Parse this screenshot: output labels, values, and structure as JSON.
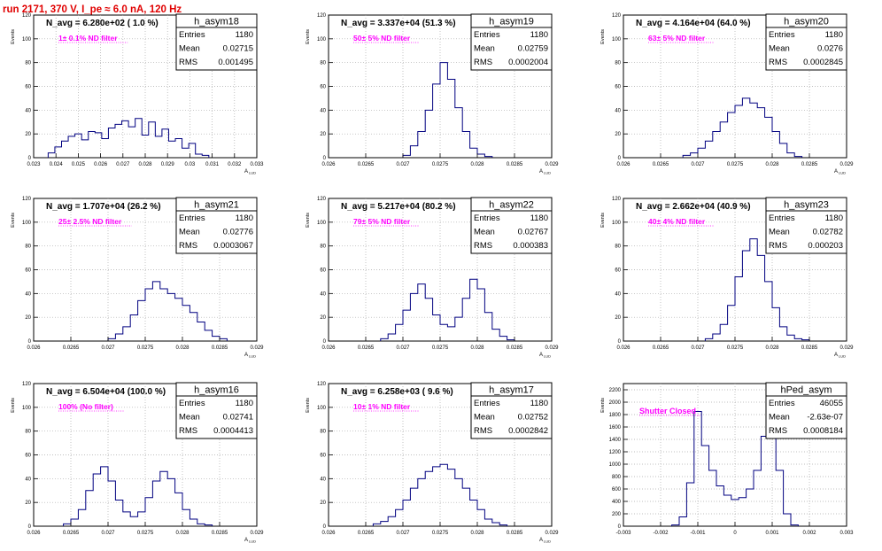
{
  "canvas_title": "run 2171,   370 V, I_pe ≈ 6.0 nA, 120 Hz",
  "colors": {
    "histogram": "#000080",
    "filter_label": "#ff00ff",
    "canvas_title": "#e00000",
    "grid": "#aaaaaa"
  },
  "stats_labels": {
    "entries": "Entries",
    "mean": "Mean",
    "rms": "RMS"
  },
  "chart_data": [
    {
      "type": "bar",
      "name": "h_asym18",
      "avg_text": "N_avg = 6.280e+02 ( 1.0 %)",
      "filter_text": "1± 0.1% ND filter",
      "entries": "1180",
      "mean": "0.02715",
      "rms": "0.001495",
      "ylabel": "Events",
      "xlabel": "A_LUD",
      "grid": true,
      "xlim": [
        0.023,
        0.033
      ],
      "ylim": [
        0,
        120
      ],
      "xticks": [
        0.023,
        0.024,
        0.025,
        0.026,
        0.027,
        0.028,
        0.029,
        0.03,
        0.031,
        0.032,
        0.033
      ],
      "xtick_labels": [
        "0.023",
        "0.024",
        "0.025",
        "0.026",
        "0.027",
        "0.028",
        "0.029",
        "0.03",
        "0.031",
        "0.032",
        "0.033"
      ],
      "yticks": [
        0,
        20,
        40,
        60,
        80,
        100,
        120
      ],
      "ytick_labels": [
        "0",
        "20",
        "40",
        "60",
        "80",
        "100",
        "120"
      ],
      "x": [
        0.0238,
        0.0241,
        0.0244,
        0.0247,
        0.025,
        0.0253,
        0.0256,
        0.0259,
        0.0262,
        0.0265,
        0.0268,
        0.0271,
        0.0274,
        0.0277,
        0.028,
        0.0283,
        0.0286,
        0.0289,
        0.0292,
        0.0295,
        0.0298,
        0.0301,
        0.0304,
        0.0307
      ],
      "values": [
        4,
        9,
        14,
        18,
        20,
        15,
        22,
        21,
        16,
        25,
        28,
        31,
        26,
        33,
        19,
        30,
        18,
        24,
        14,
        16,
        8,
        12,
        3,
        2
      ]
    },
    {
      "type": "bar",
      "name": "h_asym19",
      "avg_text": "N_avg = 3.337e+04 (51.3 %)",
      "filter_text": "50± 5% ND filter",
      "entries": "1180",
      "mean": "0.02759",
      "rms": "0.0002004",
      "ylabel": "Events",
      "xlabel": "A_LUD",
      "grid": true,
      "xlim": [
        0.026,
        0.029
      ],
      "ylim": [
        0,
        120
      ],
      "xticks": [
        0.026,
        0.0265,
        0.027,
        0.0275,
        0.028,
        0.0285,
        0.029
      ],
      "xtick_labels": [
        "0.026",
        "0.0265",
        "0.027",
        "0.0275",
        "0.028",
        "0.0285",
        "0.029"
      ],
      "yticks": [
        0,
        20,
        40,
        60,
        80,
        100,
        120
      ],
      "ytick_labels": [
        "0",
        "20",
        "40",
        "60",
        "80",
        "100",
        "120"
      ],
      "x": [
        0.02705,
        0.02715,
        0.02725,
        0.02735,
        0.02745,
        0.02755,
        0.02765,
        0.02775,
        0.02785,
        0.02795,
        0.02805,
        0.02815
      ],
      "values": [
        2,
        10,
        22,
        40,
        62,
        80,
        66,
        42,
        22,
        8,
        3,
        1
      ]
    },
    {
      "type": "bar",
      "name": "h_asym20",
      "avg_text": "N_avg = 4.164e+04 (64.0 %)",
      "filter_text": "63± 5% ND filter",
      "entries": "1180",
      "mean": "0.0276",
      "rms": "0.0002845",
      "ylabel": "Events",
      "xlabel": "A_LUD",
      "grid": true,
      "xlim": [
        0.026,
        0.029
      ],
      "ylim": [
        0,
        120
      ],
      "xticks": [
        0.026,
        0.0265,
        0.027,
        0.0275,
        0.028,
        0.0285,
        0.029
      ],
      "xtick_labels": [
        "0.026",
        "0.0265",
        "0.027",
        "0.0275",
        "0.028",
        "0.0285",
        "0.029"
      ],
      "yticks": [
        0,
        20,
        40,
        60,
        80,
        100,
        120
      ],
      "ytick_labels": [
        "0",
        "20",
        "40",
        "60",
        "80",
        "100",
        "120"
      ],
      "x": [
        0.02685,
        0.02695,
        0.02705,
        0.02715,
        0.02725,
        0.02735,
        0.02745,
        0.02755,
        0.02765,
        0.02775,
        0.02785,
        0.02795,
        0.02805,
        0.02815,
        0.02825,
        0.02835
      ],
      "values": [
        2,
        4,
        8,
        14,
        22,
        30,
        38,
        44,
        50,
        46,
        42,
        34,
        22,
        12,
        4,
        1
      ]
    },
    {
      "type": "bar",
      "name": "h_asym21",
      "avg_text": "N_avg = 1.707e+04 (26.2 %)",
      "filter_text": "25± 2.5% ND filter",
      "entries": "1180",
      "mean": "0.02776",
      "rms": "0.0003067",
      "ylabel": "Events",
      "xlabel": "A_LUD",
      "grid": true,
      "xlim": [
        0.026,
        0.029
      ],
      "ylim": [
        0,
        120
      ],
      "xticks": [
        0.026,
        0.0265,
        0.027,
        0.0275,
        0.028,
        0.0285,
        0.029
      ],
      "xtick_labels": [
        "0.026",
        "0.0265",
        "0.027",
        "0.0275",
        "0.028",
        "0.0285",
        "0.029"
      ],
      "yticks": [
        0,
        20,
        40,
        60,
        80,
        100,
        120
      ],
      "ytick_labels": [
        "0",
        "20",
        "40",
        "60",
        "80",
        "100",
        "120"
      ],
      "x": [
        0.02705,
        0.02715,
        0.02725,
        0.02735,
        0.02745,
        0.02755,
        0.02765,
        0.02775,
        0.02785,
        0.02795,
        0.02805,
        0.02815,
        0.02825,
        0.02835,
        0.02845,
        0.02855
      ],
      "values": [
        2,
        6,
        12,
        22,
        34,
        44,
        50,
        44,
        40,
        36,
        30,
        24,
        16,
        9,
        4,
        2
      ]
    },
    {
      "type": "bar",
      "name": "h_asym22",
      "avg_text": "N_avg = 5.217e+04 (80.2 %)",
      "filter_text": "79± 5% ND filter",
      "entries": "1180",
      "mean": "0.02767",
      "rms": "0.000383",
      "ylabel": "Events",
      "xlabel": "A_LUD",
      "grid": true,
      "xlim": [
        0.026,
        0.029
      ],
      "ylim": [
        0,
        120
      ],
      "xticks": [
        0.026,
        0.0265,
        0.027,
        0.0275,
        0.028,
        0.0285,
        0.029
      ],
      "xtick_labels": [
        "0.026",
        "0.0265",
        "0.027",
        "0.0275",
        "0.028",
        "0.0285",
        "0.029"
      ],
      "yticks": [
        0,
        20,
        40,
        60,
        80,
        100,
        120
      ],
      "ytick_labels": [
        "0",
        "20",
        "40",
        "60",
        "80",
        "100",
        "120"
      ],
      "x": [
        0.02675,
        0.02685,
        0.02695,
        0.02705,
        0.02715,
        0.02725,
        0.02735,
        0.02745,
        0.02755,
        0.02765,
        0.02775,
        0.02785,
        0.02795,
        0.02805,
        0.02815,
        0.02825,
        0.02835,
        0.02845
      ],
      "values": [
        2,
        6,
        14,
        26,
        40,
        48,
        36,
        22,
        14,
        12,
        20,
        36,
        52,
        44,
        24,
        10,
        4,
        1
      ]
    },
    {
      "type": "bar",
      "name": "h_asym23",
      "avg_text": "N_avg = 2.662e+04 (40.9 %)",
      "filter_text": "40± 4% ND filter",
      "entries": "1180",
      "mean": "0.02782",
      "rms": "0.000203",
      "ylabel": "Events",
      "xlabel": "A_LUD",
      "grid": true,
      "xlim": [
        0.026,
        0.029
      ],
      "ylim": [
        0,
        120
      ],
      "xticks": [
        0.026,
        0.0265,
        0.027,
        0.0275,
        0.028,
        0.0285,
        0.029
      ],
      "xtick_labels": [
        "0.026",
        "0.0265",
        "0.027",
        "0.0275",
        "0.028",
        "0.0285",
        "0.029"
      ],
      "yticks": [
        0,
        20,
        40,
        60,
        80,
        100,
        120
      ],
      "ytick_labels": [
        "0",
        "20",
        "40",
        "60",
        "80",
        "100",
        "120"
      ],
      "x": [
        0.02715,
        0.02725,
        0.02735,
        0.02745,
        0.02755,
        0.02765,
        0.02775,
        0.02785,
        0.02795,
        0.02805,
        0.02815,
        0.02825,
        0.02835,
        0.02845
      ],
      "values": [
        2,
        6,
        14,
        30,
        54,
        76,
        86,
        72,
        50,
        28,
        12,
        5,
        2,
        1
      ]
    },
    {
      "type": "bar",
      "name": "h_asym16",
      "avg_text": "N_avg = 6.504e+04 (100.0 %)",
      "filter_text": "100% (No filter)",
      "entries": "1180",
      "mean": "0.02741",
      "rms": "0.0004413",
      "ylabel": "Events",
      "xlabel": "A_LUD",
      "grid": true,
      "xlim": [
        0.026,
        0.029
      ],
      "ylim": [
        0,
        120
      ],
      "xticks": [
        0.026,
        0.0265,
        0.027,
        0.0275,
        0.028,
        0.0285,
        0.029
      ],
      "xtick_labels": [
        "0.026",
        "0.0265",
        "0.027",
        "0.0275",
        "0.028",
        "0.0285",
        "0.029"
      ],
      "yticks": [
        0,
        20,
        40,
        60,
        80,
        100,
        120
      ],
      "ytick_labels": [
        "0",
        "20",
        "40",
        "60",
        "80",
        "100",
        "120"
      ],
      "x": [
        0.02645,
        0.02655,
        0.02665,
        0.02675,
        0.02685,
        0.02695,
        0.02705,
        0.02715,
        0.02725,
        0.02735,
        0.02745,
        0.02755,
        0.02765,
        0.02775,
        0.02785,
        0.02795,
        0.02805,
        0.02815,
        0.02825,
        0.02835
      ],
      "values": [
        2,
        6,
        14,
        30,
        44,
        50,
        38,
        22,
        12,
        8,
        12,
        24,
        38,
        46,
        40,
        28,
        14,
        6,
        2,
        1
      ]
    },
    {
      "type": "bar",
      "name": "h_asym17",
      "avg_text": "N_avg = 6.258e+03 ( 9.6 %)",
      "filter_text": "10± 1% ND filter",
      "entries": "1180",
      "mean": "0.02752",
      "rms": "0.0002842",
      "ylabel": "Events",
      "xlabel": "A_LUD",
      "grid": true,
      "xlim": [
        0.026,
        0.029
      ],
      "ylim": [
        0,
        120
      ],
      "xticks": [
        0.026,
        0.0265,
        0.027,
        0.0275,
        0.028,
        0.0285,
        0.029
      ],
      "xtick_labels": [
        "0.026",
        "0.0265",
        "0.027",
        "0.0275",
        "0.028",
        "0.0285",
        "0.029"
      ],
      "yticks": [
        0,
        20,
        40,
        60,
        80,
        100,
        120
      ],
      "ytick_labels": [
        "0",
        "20",
        "40",
        "60",
        "80",
        "100",
        "120"
      ],
      "x": [
        0.02665,
        0.02675,
        0.02685,
        0.02695,
        0.02705,
        0.02715,
        0.02725,
        0.02735,
        0.02745,
        0.02755,
        0.02765,
        0.02775,
        0.02785,
        0.02795,
        0.02805,
        0.02815,
        0.02825,
        0.02835
      ],
      "values": [
        2,
        4,
        8,
        14,
        22,
        32,
        40,
        46,
        50,
        52,
        48,
        40,
        32,
        22,
        14,
        6,
        3,
        1
      ]
    },
    {
      "type": "bar",
      "name": "hPed_asym",
      "avg_text": "",
      "filter_text": "Shutter Closed",
      "entries": "46055",
      "mean": "-2.63e-07",
      "rms": "0.0008184",
      "ylabel": "Events",
      "xlabel": "",
      "grid": true,
      "xlim": [
        -0.003,
        0.003
      ],
      "ylim": [
        0,
        2300
      ],
      "xticks": [
        -0.003,
        -0.002,
        -0.001,
        0,
        0.001,
        0.002,
        0.003
      ],
      "xtick_labels": [
        "-0.003",
        "-0.002",
        "-0.001",
        "0",
        "0.001",
        "0.002",
        "0.003"
      ],
      "yticks": [
        0,
        200,
        400,
        600,
        800,
        1000,
        1200,
        1400,
        1600,
        1800,
        2000,
        2200
      ],
      "ytick_labels": [
        "0",
        "200",
        "400",
        "600",
        "800",
        "1000",
        "1200",
        "1400",
        "1600",
        "1800",
        "2000",
        "2200"
      ],
      "x": [
        -0.0016,
        -0.0014,
        -0.0012,
        -0.001,
        -0.0008,
        -0.0006,
        -0.0004,
        -0.0002,
        0,
        0.0002,
        0.0004,
        0.0006,
        0.0008,
        0.001,
        0.0012,
        0.0014,
        0.0016
      ],
      "values": [
        20,
        150,
        700,
        1850,
        1300,
        900,
        650,
        500,
        430,
        460,
        600,
        900,
        1450,
        2150,
        900,
        200,
        20
      ]
    }
  ]
}
